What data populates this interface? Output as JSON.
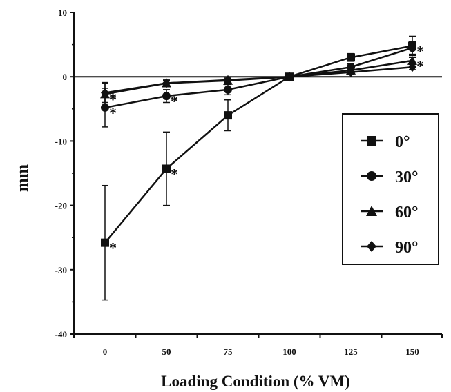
{
  "chart_data": {
    "type": "line",
    "title": "",
    "xlabel": "Loading Condition (% VM)",
    "ylabel": "mm",
    "categories": [
      "0",
      "50",
      "75",
      "100",
      "125",
      "150"
    ],
    "ylim": [
      -40,
      10
    ],
    "yticks": [
      "10",
      "0",
      "-10",
      "-20",
      "-30",
      "-40"
    ],
    "grid": false,
    "legend_position": "right",
    "significance_mark": "*",
    "series": [
      {
        "name": "0°",
        "marker": "square",
        "values": [
          -25.8,
          -14.3,
          -6.0,
          0,
          3.0,
          4.8
        ],
        "err": [
          8.9,
          5.7,
          2.4,
          0,
          0.6,
          1.5
        ],
        "sig": [
          true,
          true,
          false,
          false,
          false,
          true
        ]
      },
      {
        "name": "30°",
        "marker": "circle",
        "values": [
          -4.8,
          -3.0,
          -2.0,
          0,
          1.5,
          4.5
        ],
        "err": [
          3.0,
          1.0,
          0.8,
          0,
          0.5,
          1.0
        ],
        "sig": [
          true,
          true,
          false,
          false,
          false,
          false
        ]
      },
      {
        "name": "60°",
        "marker": "triangle",
        "values": [
          -2.7,
          -1.0,
          -0.6,
          0,
          1.0,
          2.5
        ],
        "err": [
          1.8,
          0.5,
          0.4,
          0,
          0.4,
          0.5
        ],
        "sig": [
          true,
          false,
          false,
          false,
          false,
          true
        ]
      },
      {
        "name": "90°",
        "marker": "diamond",
        "values": [
          -2.5,
          -1.0,
          -0.5,
          0,
          0.7,
          1.5
        ],
        "err": [
          1.5,
          0.4,
          0.3,
          0,
          0.3,
          0.4
        ],
        "sig": [
          true,
          false,
          false,
          false,
          false,
          false
        ]
      }
    ]
  }
}
